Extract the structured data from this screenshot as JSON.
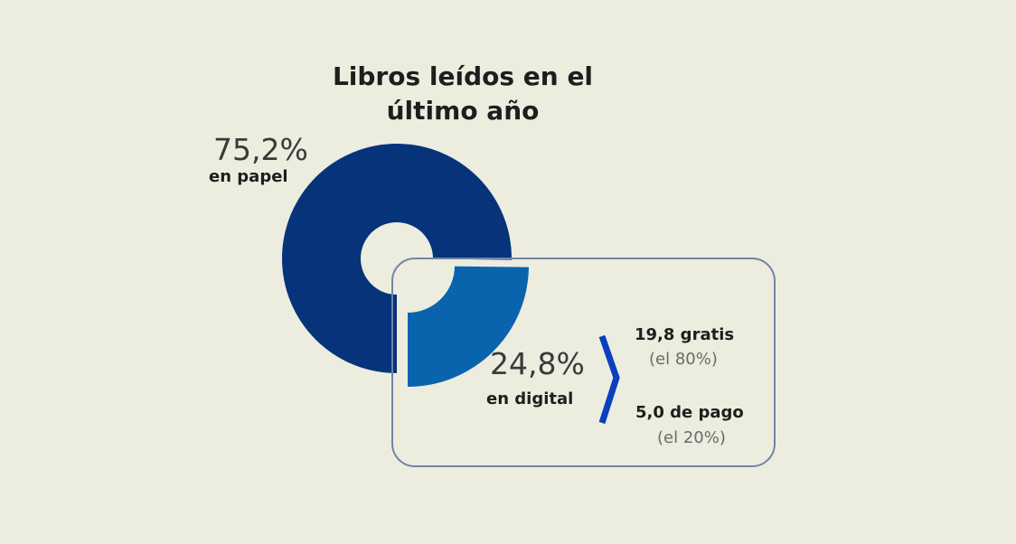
{
  "chart_data": {
    "type": "pie",
    "title_line1": "Libros leídos en el",
    "title_line2": "último año",
    "slices": [
      {
        "name": "en papel",
        "label": "75,2%",
        "value": 75.2,
        "color": "#06337a"
      },
      {
        "name": "en digital",
        "label": "24,8%",
        "value": 24.8,
        "color": "#0a64ad"
      }
    ],
    "breakdown": [
      {
        "label": "19,8 gratis",
        "share": "(el 80%)"
      },
      {
        "label": "5,0 de pago",
        "share": "(el 20%)"
      }
    ],
    "accent_color": "#0a3fbf"
  }
}
